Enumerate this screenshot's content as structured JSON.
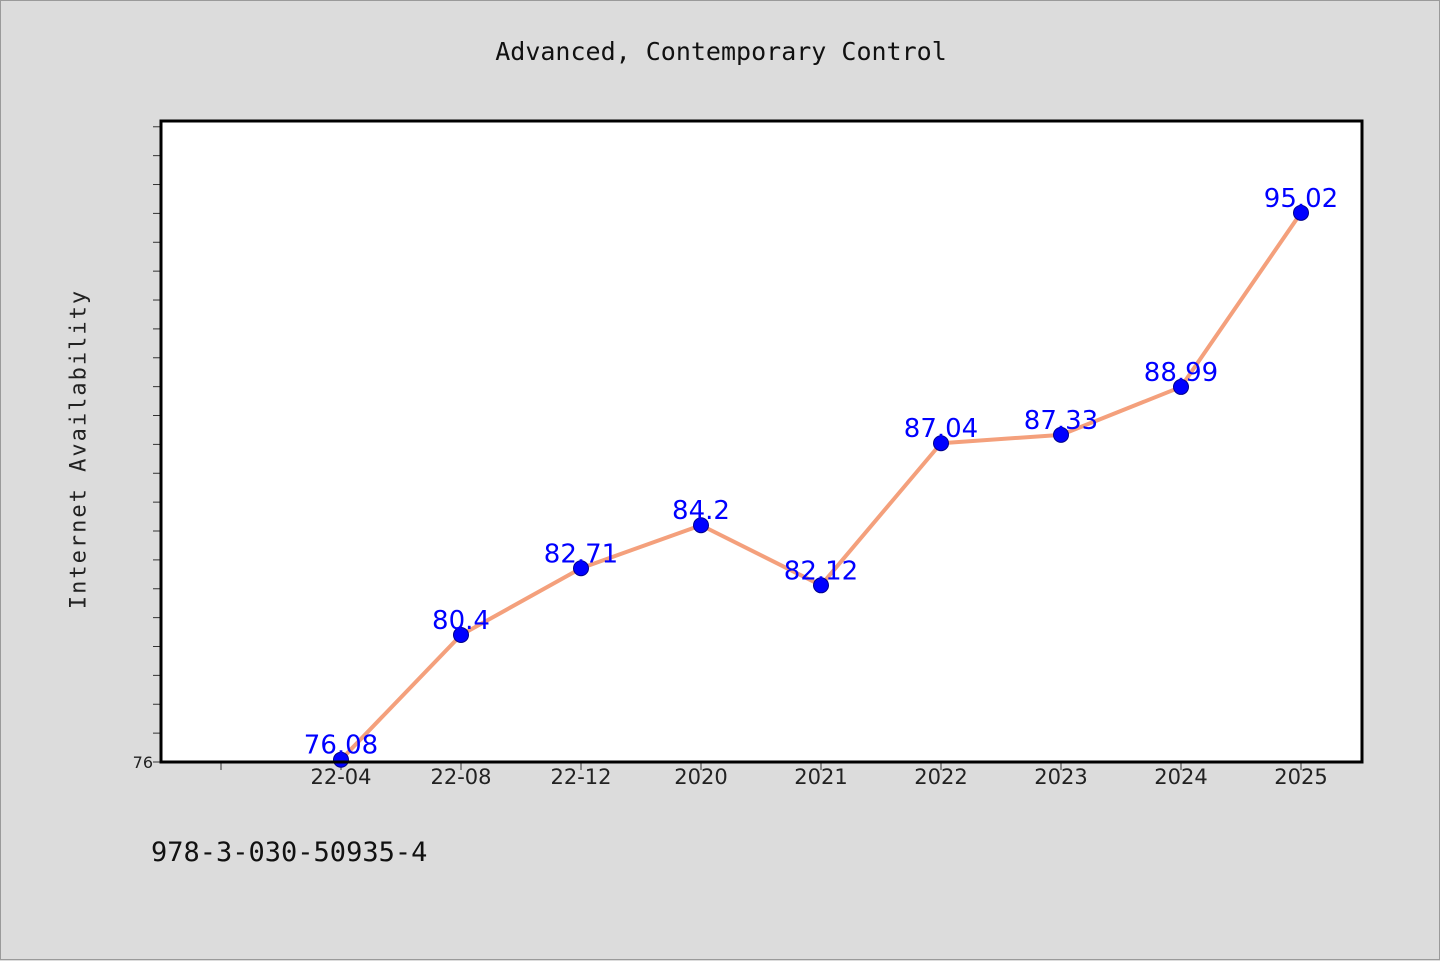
{
  "chart_data": {
    "type": "line",
    "title": "Advanced, Contemporary Control",
    "xlabel": "",
    "ylabel": "Internet Availability",
    "categories": [
      "22-04",
      "22-08",
      "22-12",
      "2020",
      "2021",
      "2022",
      "2023",
      "2024",
      "2025"
    ],
    "series": [
      {
        "values": [
          76.08,
          80.4,
          82.71,
          84.2,
          82.12,
          87.04,
          87.33,
          88.99,
          95.02
        ],
        "line_color": "#f4a07c",
        "marker_color": "#0000ff",
        "label_color": "#0000ff"
      }
    ],
    "ylim": [
      76,
      98.2
    ],
    "y_tick_labels": [
      "76"
    ],
    "grid": false,
    "legend": "none"
  },
  "footer": {
    "code": "978-3-030-50935-4"
  }
}
